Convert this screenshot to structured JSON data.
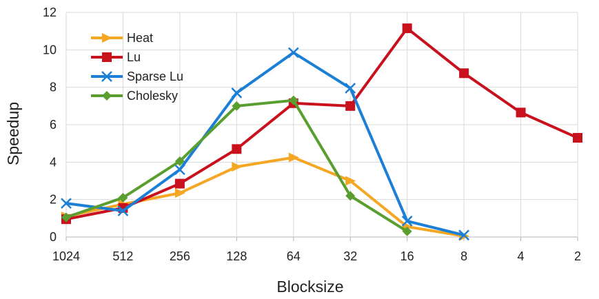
{
  "chart_data": {
    "type": "line",
    "title": "",
    "xlabel": "Blocksize",
    "ylabel": "Speedup",
    "categories": [
      "1024",
      "512",
      "256",
      "128",
      "64",
      "32",
      "16",
      "8",
      "4",
      "2"
    ],
    "ylim": [
      0,
      12
    ],
    "yticks": [
      0,
      2,
      4,
      6,
      8,
      10,
      12
    ],
    "grid": true,
    "legend_position": "top-left",
    "series": [
      {
        "name": "Heat",
        "color": "#f5a623",
        "marker": "triangle-right",
        "values": [
          1.1,
          1.75,
          2.35,
          3.75,
          4.25,
          3.0,
          0.55,
          0.05,
          null,
          null
        ]
      },
      {
        "name": "Lu",
        "color": "#c9111e",
        "marker": "square",
        "values": [
          0.95,
          1.55,
          2.85,
          4.7,
          7.15,
          7.0,
          11.15,
          8.75,
          6.65,
          5.3
        ]
      },
      {
        "name": "Sparse Lu",
        "color": "#1b7fd6",
        "marker": "x",
        "values": [
          1.8,
          1.4,
          3.6,
          7.7,
          9.85,
          7.95,
          0.85,
          0.1,
          null,
          null
        ]
      },
      {
        "name": "Cholesky",
        "color": "#5a9e2f",
        "marker": "diamond",
        "values": [
          1.05,
          2.1,
          4.05,
          7.0,
          7.3,
          2.2,
          0.3,
          null,
          null,
          null
        ]
      }
    ]
  }
}
